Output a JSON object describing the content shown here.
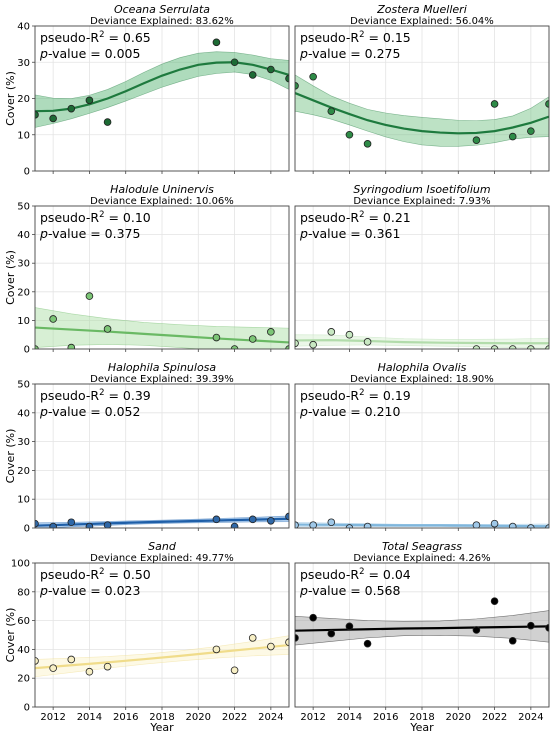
{
  "chart_data": [
    {
      "type": "scatter",
      "title": "Oceana Serrulata",
      "subtitle": "Deviance Explained: 83.62%",
      "pseudo_r2": "0.65",
      "p_value": "0.005",
      "color": "#1e7a3e",
      "point_color": "#1d6b35",
      "band_color": "#4caf6a",
      "line_color": "#1e7a3e",
      "ylim": [
        0,
        40
      ],
      "yticks": [
        "0",
        "10",
        "20",
        "30",
        "40"
      ],
      "ylabel": "Cover (%)",
      "xlim": [
        2011,
        2025
      ],
      "points": [
        [
          2011,
          15.5
        ],
        [
          2012,
          14.5
        ],
        [
          2013,
          17.2
        ],
        [
          2014,
          19.5
        ],
        [
          2015,
          13.5
        ],
        [
          2021,
          35.5
        ],
        [
          2022,
          30
        ],
        [
          2023,
          26.5
        ],
        [
          2024,
          28
        ],
        [
          2025,
          25.5
        ]
      ],
      "fit": [
        [
          2011,
          16.5
        ],
        [
          2012,
          16.6
        ],
        [
          2013,
          17.2
        ],
        [
          2014,
          18.4
        ],
        [
          2015,
          20
        ],
        [
          2016,
          22
        ],
        [
          2017,
          24.2
        ],
        [
          2018,
          26.3
        ],
        [
          2019,
          28
        ],
        [
          2020,
          29.3
        ],
        [
          2021,
          29.9
        ],
        [
          2022,
          30
        ],
        [
          2023,
          29.3
        ],
        [
          2024,
          28
        ],
        [
          2025,
          26.5
        ]
      ],
      "band_halfwidth": [
        4.5,
        3.5,
        2.8,
        2.5,
        2.5,
        2.7,
        3,
        3.2,
        3.3,
        3.2,
        3,
        2.7,
        2.7,
        3,
        4
      ]
    },
    {
      "type": "scatter",
      "title": "Zostera Muelleri",
      "subtitle": "Deviance Explained: 56.04%",
      "pseudo_r2": "0.15",
      "p_value": "0.275",
      "color": "#1e7a3e",
      "point_color": "#2e8b47",
      "band_color": "#6cbf7e",
      "line_color": "#1e7a3e",
      "ylim": [
        0,
        40
      ],
      "xlim": [
        2011,
        2025
      ],
      "points": [
        [
          2011,
          23.5
        ],
        [
          2012,
          26
        ],
        [
          2013,
          16.5
        ],
        [
          2014,
          10
        ],
        [
          2015,
          7.5
        ],
        [
          2021,
          8.5
        ],
        [
          2022,
          18.5
        ],
        [
          2023,
          9.5
        ],
        [
          2024,
          11
        ],
        [
          2025,
          18.5
        ]
      ],
      "fit": [
        [
          2011,
          21.5
        ],
        [
          2012,
          19.5
        ],
        [
          2013,
          17.5
        ],
        [
          2014,
          15.7
        ],
        [
          2015,
          14
        ],
        [
          2016,
          12.7
        ],
        [
          2017,
          11.7
        ],
        [
          2018,
          11
        ],
        [
          2019,
          10.6
        ],
        [
          2020,
          10.4
        ],
        [
          2021,
          10.5
        ],
        [
          2022,
          11
        ],
        [
          2023,
          12
        ],
        [
          2024,
          13.3
        ],
        [
          2025,
          15
        ]
      ],
      "band_halfwidth": [
        5,
        4,
        3.2,
        3,
        3,
        3.3,
        3.6,
        3.8,
        3.8,
        3.6,
        3.4,
        3.2,
        3.2,
        4,
        5.5
      ]
    },
    {
      "type": "scatter",
      "title": "Halodule Uninervis",
      "subtitle": "Deviance Explained: 10.06%",
      "pseudo_r2": "0.10",
      "p_value": "0.375",
      "color": "#7cc576",
      "point_color": "#7cc576",
      "band_color": "#a6dca0",
      "line_color": "#6ab964",
      "ylim": [
        0,
        50
      ],
      "yticks": [
        "0",
        "10",
        "20",
        "30",
        "40",
        "50"
      ],
      "ylabel": "Cover (%)",
      "xlim": [
        2011,
        2025
      ],
      "points": [
        [
          2011,
          0
        ],
        [
          2012,
          10.5
        ],
        [
          2013,
          0.5
        ],
        [
          2014,
          18.5
        ],
        [
          2015,
          7
        ],
        [
          2021,
          4
        ],
        [
          2022,
          0
        ],
        [
          2023,
          3.5
        ],
        [
          2024,
          6
        ],
        [
          2025,
          0
        ]
      ],
      "fit": [
        [
          2011,
          7.5
        ],
        [
          2013,
          6.8
        ],
        [
          2015,
          6.1
        ],
        [
          2017,
          5.3
        ],
        [
          2019,
          4.5
        ],
        [
          2021,
          3.7
        ],
        [
          2023,
          3
        ],
        [
          2025,
          2.3
        ]
      ],
      "band_halfwidth": [
        7,
        5.5,
        4.5,
        4,
        4,
        4.2,
        4.6,
        5
      ]
    },
    {
      "type": "scatter",
      "title": "Syringodium Isoetifolium",
      "subtitle": "Deviance Explained: 7.93%",
      "pseudo_r2": "0.21",
      "p_value": "0.361",
      "color": "#b7e0b1",
      "point_color": "#c8e8c2",
      "band_color": "#d3eecd",
      "line_color": "#b2dcab",
      "ylim": [
        0,
        50
      ],
      "xlim": [
        2011,
        2025
      ],
      "points": [
        [
          2011,
          2
        ],
        [
          2012,
          1.5
        ],
        [
          2013,
          6
        ],
        [
          2014,
          5
        ],
        [
          2015,
          2.5
        ],
        [
          2021,
          0
        ],
        [
          2022,
          0
        ],
        [
          2023,
          0
        ],
        [
          2024,
          0
        ],
        [
          2025,
          0
        ]
      ],
      "fit": [
        [
          2011,
          3
        ],
        [
          2013,
          3.1
        ],
        [
          2015,
          2.8
        ],
        [
          2017,
          2.4
        ],
        [
          2019,
          2.2
        ],
        [
          2021,
          2.1
        ],
        [
          2023,
          2
        ],
        [
          2025,
          2
        ]
      ],
      "band_halfwidth": [
        2,
        1.8,
        1.4,
        1.2,
        1.2,
        1.3,
        1.5,
        1.8
      ]
    },
    {
      "type": "scatter",
      "title": "Halophila Spinulosa",
      "subtitle": "Deviance Explained: 39.39%",
      "pseudo_r2": "0.39",
      "p_value": "0.052",
      "color": "#2b6cb8",
      "point_color": "#2f68a8",
      "band_color": "#4a90d9",
      "line_color": "#1f5fa8",
      "ylim": [
        0,
        50
      ],
      "yticks": [
        "0",
        "10",
        "20",
        "30",
        "40",
        "50"
      ],
      "ylabel": "Cover (%)",
      "xlim": [
        2011,
        2025
      ],
      "points": [
        [
          2011,
          1.5
        ],
        [
          2012,
          0.5
        ],
        [
          2013,
          2
        ],
        [
          2014,
          0.5
        ],
        [
          2015,
          1
        ],
        [
          2021,
          3
        ],
        [
          2022,
          0.5
        ],
        [
          2023,
          3
        ],
        [
          2024,
          2.5
        ],
        [
          2025,
          4
        ]
      ],
      "fit": [
        [
          2011,
          0.8
        ],
        [
          2013,
          1.2
        ],
        [
          2015,
          1.6
        ],
        [
          2017,
          2
        ],
        [
          2019,
          2.3
        ],
        [
          2021,
          2.6
        ],
        [
          2023,
          2.9
        ],
        [
          2025,
          3.2
        ]
      ],
      "band_halfwidth": [
        1,
        0.8,
        0.7,
        0.6,
        0.6,
        0.7,
        0.8,
        1
      ]
    },
    {
      "type": "scatter",
      "title": "Halophila Ovalis",
      "subtitle": "Deviance Explained: 18.90%",
      "pseudo_r2": "0.19",
      "p_value": "0.210",
      "color": "#8ec3e6",
      "point_color": "#9fc8e8",
      "band_color": "#b8d9ef",
      "line_color": "#7fb6dc",
      "ylim": [
        0,
        50
      ],
      "xlim": [
        2011,
        2025
      ],
      "points": [
        [
          2011,
          1
        ],
        [
          2012,
          1
        ],
        [
          2013,
          2
        ],
        [
          2014,
          0
        ],
        [
          2015,
          0.5
        ],
        [
          2021,
          1
        ],
        [
          2022,
          1.5
        ],
        [
          2023,
          0.5
        ],
        [
          2024,
          0
        ],
        [
          2025,
          0
        ]
      ],
      "fit": [
        [
          2011,
          1.2
        ],
        [
          2013,
          1.1
        ],
        [
          2015,
          1
        ],
        [
          2017,
          0.9
        ],
        [
          2019,
          0.9
        ],
        [
          2021,
          0.8
        ],
        [
          2023,
          0.7
        ],
        [
          2025,
          0.6
        ]
      ],
      "band_halfwidth": [
        0.8,
        0.6,
        0.5,
        0.4,
        0.4,
        0.5,
        0.6,
        0.8
      ]
    },
    {
      "type": "scatter",
      "title": "Sand",
      "subtitle": "Deviance Explained: 49.77%",
      "pseudo_r2": "0.50",
      "p_value": "0.023",
      "italic_title": false,
      "color": "#f5e7a6",
      "point_color": "#f7efc5",
      "band_color": "#fbf1c6",
      "line_color": "#f0dc8a",
      "ylim": [
        0,
        100
      ],
      "yticks": [
        "0",
        "20",
        "40",
        "60",
        "80",
        "100"
      ],
      "ylabel": "Cover (%)",
      "xlabel": "Year",
      "xlim": [
        2011,
        2025
      ],
      "xticks": [
        "2012",
        "2014",
        "2016",
        "2018",
        "2020",
        "2022",
        "2024"
      ],
      "points": [
        [
          2011,
          32
        ],
        [
          2012,
          27
        ],
        [
          2013,
          33
        ],
        [
          2014,
          24.5
        ],
        [
          2015,
          28
        ],
        [
          2021,
          40
        ],
        [
          2022,
          25.5
        ],
        [
          2023,
          48
        ],
        [
          2024,
          42
        ],
        [
          2025,
          45
        ]
      ],
      "fit": [
        [
          2011,
          27
        ],
        [
          2013,
          29
        ],
        [
          2015,
          31
        ],
        [
          2017,
          33.2
        ],
        [
          2019,
          35.5
        ],
        [
          2021,
          38
        ],
        [
          2023,
          40.5
        ],
        [
          2025,
          43
        ]
      ],
      "band_halfwidth": [
        6,
        5,
        4,
        3.5,
        3.5,
        4,
        5,
        6.5
      ]
    },
    {
      "type": "scatter",
      "title": "Total Seagrass",
      "subtitle": "Deviance Explained: 4.26%",
      "pseudo_r2": "0.04",
      "p_value": "0.568",
      "italic_title": false,
      "color": "#000000",
      "point_color": "#000000",
      "band_color": "#9a9a9a",
      "line_color": "#000000",
      "ylim": [
        0,
        100
      ],
      "xlabel": "Year",
      "xlim": [
        2011,
        2025
      ],
      "xticks": [
        "2012",
        "2014",
        "2016",
        "2018",
        "2020",
        "2022",
        "2024"
      ],
      "points": [
        [
          2011,
          48
        ],
        [
          2012,
          62
        ],
        [
          2013,
          51
        ],
        [
          2014,
          56
        ],
        [
          2015,
          44
        ],
        [
          2021,
          53.5
        ],
        [
          2022,
          73.5
        ],
        [
          2023,
          46
        ],
        [
          2024,
          56.5
        ],
        [
          2025,
          55
        ]
      ],
      "fit": [
        [
          2011,
          53
        ],
        [
          2013,
          53.5
        ],
        [
          2015,
          54
        ],
        [
          2017,
          54.5
        ],
        [
          2019,
          54.8
        ],
        [
          2021,
          55.2
        ],
        [
          2023,
          55.6
        ],
        [
          2025,
          56
        ]
      ],
      "band_halfwidth": [
        10,
        8,
        6,
        5,
        5,
        6,
        8,
        11
      ]
    }
  ]
}
